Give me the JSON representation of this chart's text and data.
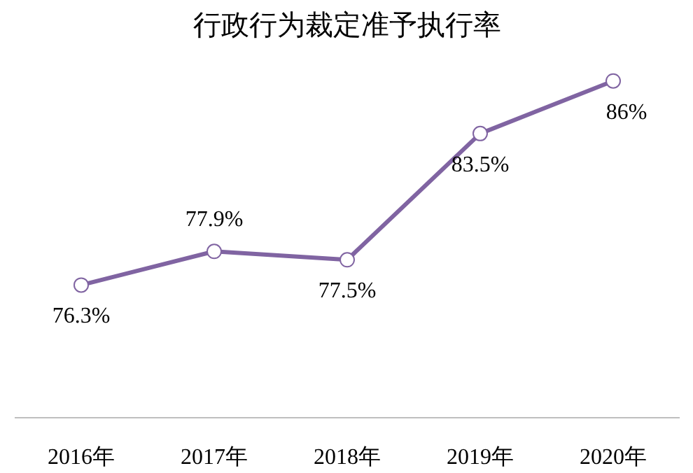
{
  "chart_data": {
    "type": "line",
    "title": "行政行为裁定准予执行率",
    "categories": [
      "2016年",
      "2017年",
      "2018年",
      "2019年",
      "2020年"
    ],
    "series": [
      {
        "color": "#8064a2",
        "values": [
          76.3,
          77.9,
          77.5,
          83.5,
          86
        ],
        "value_labels": [
          "76.3%",
          "77.9%",
          "77.5%",
          "83.5%",
          "86%"
        ]
      }
    ],
    "marker": "circle",
    "line_style": "solid"
  }
}
